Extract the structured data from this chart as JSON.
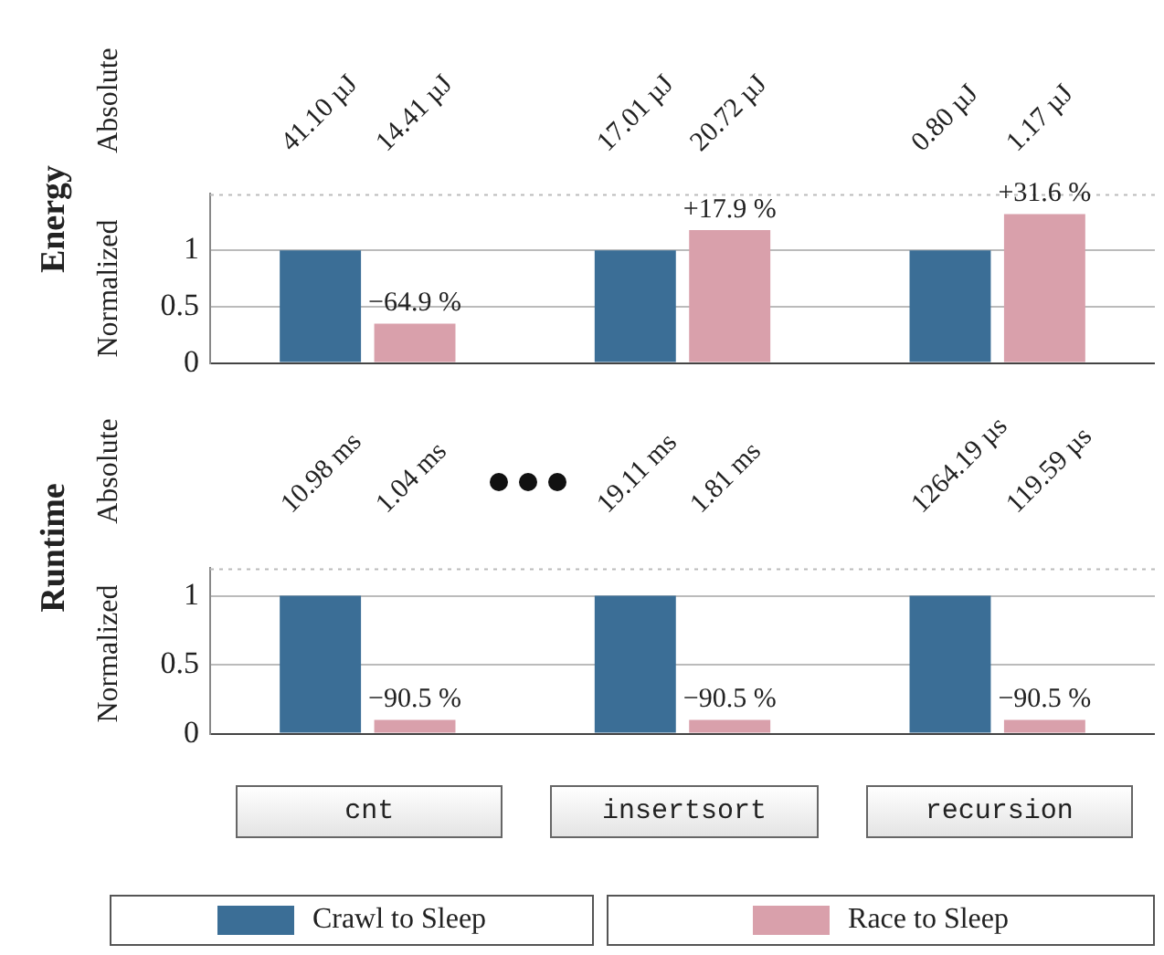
{
  "chart_data": [
    {
      "type": "bar",
      "title": "Energy",
      "subtitle": "Absolute",
      "ylabel": "Normalized",
      "categories": [
        null,
        null,
        null
      ],
      "tick_labels": "y",
      "legend": "bottom",
      "grid": "y",
      "ylim": [
        0,
        1.5
      ],
      "yticks": [
        0,
        0.5,
        1
      ],
      "annotations": [
        "41.10 µJ",
        "14.41 µJ",
        "−64.9 %",
        "17.01 µJ",
        "20.72 µJ",
        "+17.9 %",
        "0.80 µJ",
        "1.17 µJ",
        "+31.6 %"
      ],
      "series": [
        {
          "name": "Crawl to Sleep",
          "color": "#3b6e96",
          "values": [
            1,
            1,
            1
          ]
        },
        {
          "name": "Race to Sleep",
          "color": "#d9a0ab",
          "values": [
            0.35,
            1.18,
            1.32
          ]
        }
      ]
    },
    {
      "type": "bar",
      "title": "Runtime",
      "subtitle": "Absolute",
      "ylabel": "Normalized",
      "categories": [
        "cnt",
        "insertsort",
        "recursion"
      ],
      "grid": "y",
      "ylim": [
        0,
        1.2
      ],
      "yticks": [
        0,
        0.5,
        1
      ],
      "annotations": [
        "10.98 ms",
        "1.04 ms",
        "−90.5 %",
        "19.11 ms",
        "1.81 ms",
        "−90.5 %",
        "1264.19 µs",
        "119.59 µs",
        "−90.5 %"
      ],
      "series": [
        {
          "color": "#3b6e96",
          "values": [
            1,
            1,
            1
          ]
        },
        {
          "color": "#d9a0ab",
          "values": [
            0.1,
            0.1,
            0.1
          ]
        }
      ]
    }
  ]
}
